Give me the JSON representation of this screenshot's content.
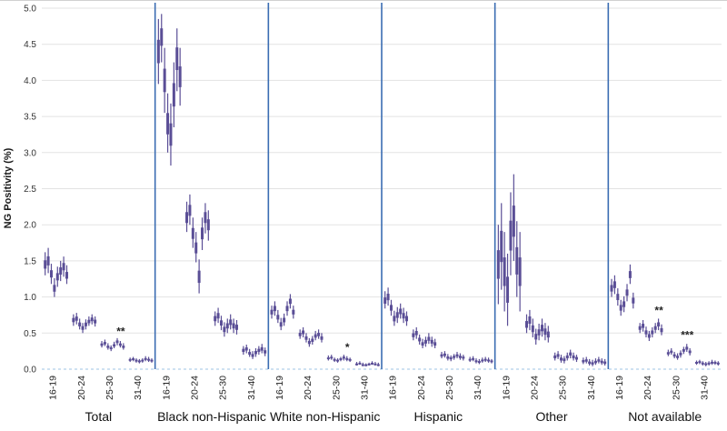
{
  "chart_data": {
    "type": "errorbar",
    "title": "",
    "xlabel": "",
    "ylabel": "NG Positivity (%)",
    "ylim": [
      0,
      5
    ],
    "ytick_step": 0.5,
    "grid": true,
    "age_groups": [
      "16-19",
      "20-24",
      "25-30",
      "31-40"
    ],
    "colors": {
      "bar": "#5a4e96",
      "separator": "#3a6cb2",
      "gridline": "#e3e3e3",
      "zero_line": "#9dc3e6",
      "text": "#1a1a1a"
    },
    "panels": [
      {
        "name": "Total",
        "series": [
          [
            [
              1.3,
              1.45,
              1.62
            ],
            [
              1.33,
              1.5,
              1.68
            ],
            [
              1.18,
              1.32,
              1.46
            ],
            [
              1.0,
              1.12,
              1.26
            ],
            [
              1.14,
              1.28,
              1.42
            ],
            [
              1.22,
              1.36,
              1.5
            ],
            [
              1.28,
              1.42,
              1.56
            ],
            [
              1.18,
              1.3,
              1.44
            ]
          ],
          [
            [
              0.6,
              0.68,
              0.76
            ],
            [
              0.62,
              0.7,
              0.78
            ],
            [
              0.55,
              0.62,
              0.7
            ],
            [
              0.5,
              0.57,
              0.64
            ],
            [
              0.55,
              0.62,
              0.69
            ],
            [
              0.6,
              0.66,
              0.73
            ],
            [
              0.62,
              0.69,
              0.76
            ],
            [
              0.59,
              0.66,
              0.73
            ]
          ],
          [
            [
              0.3,
              0.34,
              0.39
            ],
            [
              0.32,
              0.36,
              0.41
            ],
            [
              0.27,
              0.31,
              0.36
            ],
            [
              0.25,
              0.29,
              0.33
            ],
            [
              0.29,
              0.33,
              0.38
            ],
            [
              0.33,
              0.38,
              0.43
            ],
            [
              0.3,
              0.34,
              0.39
            ],
            [
              0.27,
              0.31,
              0.36
            ]
          ],
          [
            [
              0.1,
              0.13,
              0.16
            ],
            [
              0.11,
              0.14,
              0.17
            ],
            [
              0.09,
              0.12,
              0.15
            ],
            [
              0.08,
              0.11,
              0.14
            ],
            [
              0.09,
              0.12,
              0.15
            ],
            [
              0.11,
              0.14,
              0.18
            ],
            [
              0.1,
              0.13,
              0.17
            ],
            [
              0.09,
              0.12,
              0.15
            ]
          ]
        ]
      },
      {
        "name": "Black non-Hispanic",
        "series": [
          [
            [
              3.95,
              4.4,
              4.85
            ],
            [
              4.25,
              4.6,
              4.92
            ],
            [
              3.55,
              4.0,
              4.45
            ],
            [
              3.0,
              3.4,
              3.82
            ],
            [
              2.82,
              3.25,
              3.68
            ],
            [
              3.35,
              3.8,
              4.25
            ],
            [
              3.85,
              4.3,
              4.72
            ],
            [
              3.65,
              4.05,
              4.45
            ]
          ],
          [
            [
              1.9,
              2.1,
              2.32
            ],
            [
              2.0,
              2.2,
              2.42
            ],
            [
              1.68,
              1.88,
              2.1
            ],
            [
              1.48,
              1.68,
              1.9
            ],
            [
              1.05,
              1.28,
              1.52
            ],
            [
              1.65,
              1.88,
              2.1
            ],
            [
              1.88,
              2.1,
              2.3
            ],
            [
              1.78,
              2.0,
              2.2
            ]
          ],
          [
            [
              0.6,
              0.7,
              0.8
            ],
            [
              0.64,
              0.74,
              0.85
            ],
            [
              0.54,
              0.64,
              0.74
            ],
            [
              0.45,
              0.55,
              0.65
            ],
            [
              0.5,
              0.6,
              0.7
            ],
            [
              0.55,
              0.65,
              0.76
            ],
            [
              0.5,
              0.6,
              0.7
            ],
            [
              0.48,
              0.58,
              0.68
            ]
          ],
          [
            [
              0.2,
              0.26,
              0.32
            ],
            [
              0.22,
              0.28,
              0.34
            ],
            [
              0.17,
              0.22,
              0.28
            ],
            [
              0.14,
              0.19,
              0.25
            ],
            [
              0.17,
              0.23,
              0.29
            ],
            [
              0.2,
              0.26,
              0.32
            ],
            [
              0.22,
              0.28,
              0.35
            ],
            [
              0.18,
              0.24,
              0.3
            ]
          ]
        ]
      },
      {
        "name": "White non-Hispanic",
        "series": [
          [
            [
              0.7,
              0.79,
              0.88
            ],
            [
              0.74,
              0.84,
              0.94
            ],
            [
              0.64,
              0.72,
              0.82
            ],
            [
              0.54,
              0.62,
              0.71
            ],
            [
              0.6,
              0.68,
              0.77
            ],
            [
              0.74,
              0.84,
              0.94
            ],
            [
              0.84,
              0.94,
              1.04
            ],
            [
              0.7,
              0.79,
              0.88
            ]
          ],
          [
            [
              0.42,
              0.48,
              0.55
            ],
            [
              0.44,
              0.51,
              0.58
            ],
            [
              0.37,
              0.43,
              0.5
            ],
            [
              0.31,
              0.37,
              0.43
            ],
            [
              0.34,
              0.4,
              0.46
            ],
            [
              0.4,
              0.46,
              0.53
            ],
            [
              0.42,
              0.48,
              0.55
            ],
            [
              0.37,
              0.43,
              0.5
            ]
          ],
          [
            [
              0.12,
              0.15,
              0.19
            ],
            [
              0.13,
              0.16,
              0.2
            ],
            [
              0.1,
              0.13,
              0.16
            ],
            [
              0.09,
              0.12,
              0.15
            ],
            [
              0.11,
              0.14,
              0.17
            ],
            [
              0.12,
              0.16,
              0.2
            ],
            [
              0.11,
              0.14,
              0.18
            ],
            [
              0.1,
              0.13,
              0.16
            ]
          ],
          [
            [
              0.05,
              0.07,
              0.1
            ],
            [
              0.06,
              0.08,
              0.11
            ],
            [
              0.04,
              0.06,
              0.09
            ],
            [
              0.04,
              0.06,
              0.08
            ],
            [
              0.05,
              0.07,
              0.09
            ],
            [
              0.06,
              0.08,
              0.11
            ],
            [
              0.05,
              0.07,
              0.1
            ],
            [
              0.04,
              0.06,
              0.09
            ]
          ]
        ]
      },
      {
        "name": "Hispanic",
        "series": [
          [
            [
              0.84,
              0.95,
              1.08
            ],
            [
              0.88,
              1.0,
              1.13
            ],
            [
              0.74,
              0.85,
              0.96
            ],
            [
              0.6,
              0.7,
              0.81
            ],
            [
              0.64,
              0.75,
              0.86
            ],
            [
              0.7,
              0.8,
              0.91
            ],
            [
              0.64,
              0.74,
              0.85
            ],
            [
              0.6,
              0.7,
              0.8
            ]
          ],
          [
            [
              0.4,
              0.47,
              0.55
            ],
            [
              0.42,
              0.5,
              0.58
            ],
            [
              0.34,
              0.41,
              0.48
            ],
            [
              0.29,
              0.35,
              0.42
            ],
            [
              0.31,
              0.38,
              0.45
            ],
            [
              0.35,
              0.42,
              0.5
            ],
            [
              0.31,
              0.38,
              0.45
            ],
            [
              0.29,
              0.35,
              0.42
            ]
          ],
          [
            [
              0.15,
              0.19,
              0.24
            ],
            [
              0.16,
              0.2,
              0.25
            ],
            [
              0.12,
              0.16,
              0.21
            ],
            [
              0.11,
              0.15,
              0.19
            ],
            [
              0.13,
              0.17,
              0.21
            ],
            [
              0.15,
              0.19,
              0.24
            ],
            [
              0.13,
              0.17,
              0.22
            ],
            [
              0.12,
              0.16,
              0.2
            ]
          ],
          [
            [
              0.1,
              0.13,
              0.17
            ],
            [
              0.11,
              0.14,
              0.18
            ],
            [
              0.08,
              0.11,
              0.15
            ],
            [
              0.07,
              0.1,
              0.14
            ],
            [
              0.09,
              0.12,
              0.16
            ],
            [
              0.1,
              0.13,
              0.17
            ],
            [
              0.09,
              0.12,
              0.16
            ],
            [
              0.08,
              0.11,
              0.14
            ]
          ]
        ]
      },
      {
        "name": "Other",
        "series": [
          [
            [
              0.9,
              1.45,
              2.0
            ],
            [
              1.1,
              1.7,
              2.3
            ],
            [
              0.8,
              1.35,
              1.9
            ],
            [
              0.6,
              1.1,
              1.6
            ],
            [
              1.3,
              1.85,
              2.45
            ],
            [
              1.5,
              2.05,
              2.7
            ],
            [
              1.0,
              1.5,
              2.05
            ],
            [
              0.8,
              1.35,
              1.9
            ]
          ],
          [
            [
              0.5,
              0.62,
              0.76
            ],
            [
              0.54,
              0.68,
              0.82
            ],
            [
              0.44,
              0.56,
              0.7
            ],
            [
              0.34,
              0.45,
              0.56
            ],
            [
              0.4,
              0.51,
              0.63
            ],
            [
              0.45,
              0.57,
              0.7
            ],
            [
              0.4,
              0.52,
              0.64
            ],
            [
              0.37,
              0.48,
              0.6
            ]
          ],
          [
            [
              0.12,
              0.17,
              0.23
            ],
            [
              0.14,
              0.19,
              0.25
            ],
            [
              0.09,
              0.14,
              0.2
            ],
            [
              0.08,
              0.13,
              0.18
            ],
            [
              0.12,
              0.17,
              0.23
            ],
            [
              0.15,
              0.21,
              0.27
            ],
            [
              0.12,
              0.17,
              0.23
            ],
            [
              0.1,
              0.15,
              0.2
            ]
          ],
          [
            [
              0.07,
              0.11,
              0.16
            ],
            [
              0.08,
              0.12,
              0.17
            ],
            [
              0.05,
              0.09,
              0.14
            ],
            [
              0.04,
              0.08,
              0.13
            ],
            [
              0.06,
              0.1,
              0.15
            ],
            [
              0.08,
              0.12,
              0.17
            ],
            [
              0.06,
              0.1,
              0.15
            ],
            [
              0.05,
              0.09,
              0.14
            ]
          ]
        ]
      },
      {
        "name": "Not available",
        "series": [
          [
            [
              1.0,
              1.12,
              1.25
            ],
            [
              1.04,
              1.17,
              1.3
            ],
            [
              0.88,
              1.0,
              1.12
            ],
            [
              0.74,
              0.85,
              0.96
            ],
            [
              0.79,
              0.9,
              1.01
            ],
            [
              0.94,
              1.06,
              1.18
            ],
            [
              1.18,
              1.31,
              1.45
            ],
            [
              0.84,
              0.95,
              1.06
            ]
          ],
          [
            [
              0.5,
              0.57,
              0.64
            ],
            [
              0.52,
              0.6,
              0.68
            ],
            [
              0.44,
              0.51,
              0.59
            ],
            [
              0.39,
              0.46,
              0.53
            ],
            [
              0.44,
              0.51,
              0.58
            ],
            [
              0.5,
              0.57,
              0.64
            ],
            [
              0.54,
              0.62,
              0.7
            ],
            [
              0.47,
              0.54,
              0.62
            ]
          ],
          [
            [
              0.18,
              0.22,
              0.27
            ],
            [
              0.2,
              0.24,
              0.29
            ],
            [
              0.15,
              0.19,
              0.24
            ],
            [
              0.13,
              0.17,
              0.22
            ],
            [
              0.16,
              0.21,
              0.26
            ],
            [
              0.21,
              0.26,
              0.31
            ],
            [
              0.24,
              0.29,
              0.35
            ],
            [
              0.19,
              0.24,
              0.29
            ]
          ],
          [
            [
              0.06,
              0.09,
              0.12
            ],
            [
              0.07,
              0.1,
              0.13
            ],
            [
              0.05,
              0.08,
              0.11
            ],
            [
              0.04,
              0.07,
              0.1
            ],
            [
              0.05,
              0.08,
              0.11
            ],
            [
              0.06,
              0.09,
              0.13
            ],
            [
              0.06,
              0.09,
              0.12
            ],
            [
              0.05,
              0.08,
              0.11
            ]
          ]
        ]
      }
    ],
    "annotations": [
      {
        "panel": 0,
        "group": 2,
        "text": "**",
        "y": 0.47
      },
      {
        "panel": 2,
        "group": 2,
        "text": "*",
        "y": 0.25
      },
      {
        "panel": 5,
        "group": 1,
        "text": "**",
        "y": 0.76
      },
      {
        "panel": 5,
        "group": 2,
        "text": "***",
        "y": 0.42
      }
    ]
  }
}
